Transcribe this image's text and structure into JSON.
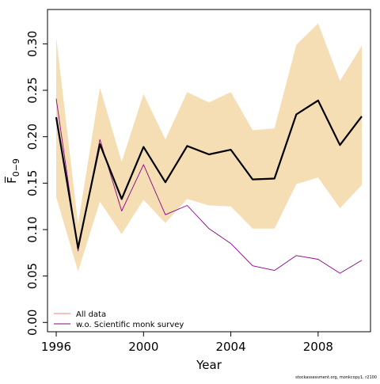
{
  "chart_data": {
    "type": "line",
    "xlabel": "Year",
    "ylabel": "F̅",
    "ylabel_subscript": "0−9",
    "xlim": [
      1995.6,
      2010.4
    ],
    "ylim": [
      -0.01,
      0.337
    ],
    "x_ticks": [
      1996,
      2000,
      2004,
      2008
    ],
    "y_ticks": [
      0.0,
      0.05,
      0.1,
      0.15,
      0.2,
      0.25,
      0.3
    ],
    "x_tick_labels": [
      "1996",
      "2000",
      "2004",
      "2008"
    ],
    "y_tick_labels": [
      "0.00",
      "0.05",
      "0.10",
      "0.15",
      "0.20",
      "0.25",
      "0.30"
    ],
    "x": [
      1996,
      1997,
      1998,
      1999,
      2000,
      2001,
      2002,
      2003,
      2004,
      2005,
      2006,
      2007,
      2008,
      2009,
      2010
    ],
    "band": {
      "lower": [
        0.135,
        0.055,
        0.13,
        0.095,
        0.132,
        0.107,
        0.133,
        0.126,
        0.125,
        0.101,
        0.101,
        0.149,
        0.156,
        0.123,
        0.148
      ],
      "upper": [
        0.307,
        0.106,
        0.253,
        0.173,
        0.246,
        0.197,
        0.248,
        0.237,
        0.248,
        0.207,
        0.209,
        0.299,
        0.322,
        0.26,
        0.298
      ],
      "color": "#f5deb3"
    },
    "series": [
      {
        "name": "All data",
        "values": [
          0.221,
          0.08,
          0.192,
          0.133,
          0.189,
          0.151,
          0.19,
          0.181,
          0.186,
          0.154,
          0.155,
          0.224,
          0.239,
          0.191,
          0.222
        ],
        "color": "#000000",
        "legend_color": "#f08080"
      },
      {
        "name": "w.o. Scientific monk survey",
        "values": [
          0.241,
          0.077,
          0.197,
          0.12,
          0.17,
          0.116,
          0.126,
          0.101,
          0.085,
          0.061,
          0.056,
          0.072,
          0.068,
          0.053,
          0.067
        ],
        "color": "#8b008b"
      }
    ],
    "legend": {
      "placement": "bottom-left"
    },
    "credit": "stockassessment.org, monkcopy1, r2100",
    "grid": false
  }
}
